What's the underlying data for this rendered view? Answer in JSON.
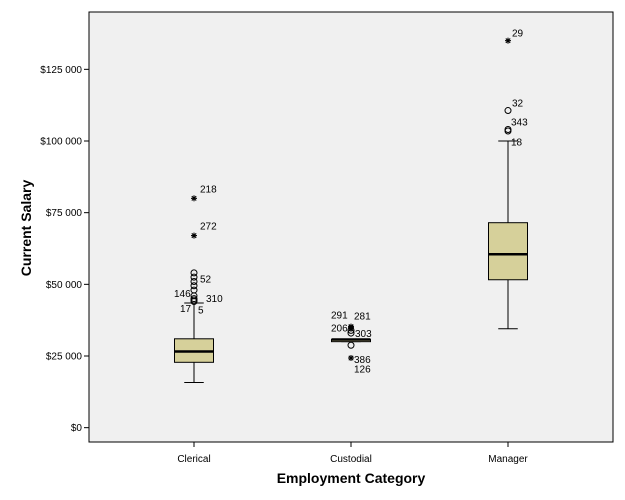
{
  "chart_data": {
    "type": "boxplot",
    "title": "",
    "xlabel": "Employment Category",
    "ylabel": "Current Salary",
    "ylim": [
      -5000,
      145000
    ],
    "yticks": [
      0,
      25000,
      50000,
      75000,
      100000,
      125000
    ],
    "ytick_labels": [
      "$0",
      "$25 000",
      "$50 000",
      "$75 000",
      "$100 000",
      "$125 000"
    ],
    "grid": false,
    "box_color": "#d6d09a",
    "plot_background": "#f0f0f0",
    "categories": [
      "Clerical",
      "Custodial",
      "Manager"
    ],
    "boxes": [
      {
        "category": "Clerical",
        "whisker_low": 15750,
        "q1": 22800,
        "median": 26550,
        "q3": 31000,
        "whisker_high": 43500,
        "outliers": [
          {
            "value": 80000,
            "marker": "star",
            "label": "218"
          },
          {
            "value": 67000,
            "marker": "star",
            "label": "272"
          },
          {
            "value": 54000,
            "marker": "circle",
            "label": ""
          },
          {
            "value": 52500,
            "marker": "circle",
            "label": ""
          },
          {
            "value": 51000,
            "marker": "circle",
            "label": "52"
          },
          {
            "value": 49500,
            "marker": "circle",
            "label": ""
          },
          {
            "value": 48000,
            "marker": "circle",
            "label": "146"
          },
          {
            "value": 46000,
            "marker": "circle",
            "label": "310"
          },
          {
            "value": 45000,
            "marker": "circle",
            "label": ""
          },
          {
            "value": 44500,
            "marker": "circle",
            "label": "17"
          },
          {
            "value": 44000,
            "marker": "circle",
            "label": "5"
          }
        ]
      },
      {
        "category": "Custodial",
        "whisker_low": 30000,
        "q1": 30000,
        "median": 30750,
        "q3": 30750,
        "whisker_high": 30750,
        "outliers": [
          {
            "value": 35250,
            "marker": "star",
            "label": "291"
          },
          {
            "value": 35000,
            "marker": "star",
            "label": "281"
          },
          {
            "value": 34500,
            "marker": "star",
            "label": ""
          },
          {
            "value": 33950,
            "marker": "circle",
            "label": "206"
          },
          {
            "value": 33000,
            "marker": "circle",
            "label": "303"
          },
          {
            "value": 28750,
            "marker": "circle",
            "label": ""
          },
          {
            "value": 24300,
            "marker": "star",
            "label": "386"
          },
          {
            "value": 21000,
            "marker": "none",
            "label": "126"
          }
        ]
      },
      {
        "category": "Manager",
        "whisker_low": 34500,
        "q1": 51600,
        "median": 60500,
        "q3": 71500,
        "whisker_high": 100000,
        "outliers": [
          {
            "value": 135000,
            "marker": "star",
            "label": "29"
          },
          {
            "value": 110625,
            "marker": "circle",
            "label": "32"
          },
          {
            "value": 104000,
            "marker": "circle",
            "label": "343"
          },
          {
            "value": 103500,
            "marker": "circle",
            "label": ""
          },
          {
            "value": 100500,
            "marker": "none",
            "label": "18"
          }
        ]
      }
    ]
  }
}
